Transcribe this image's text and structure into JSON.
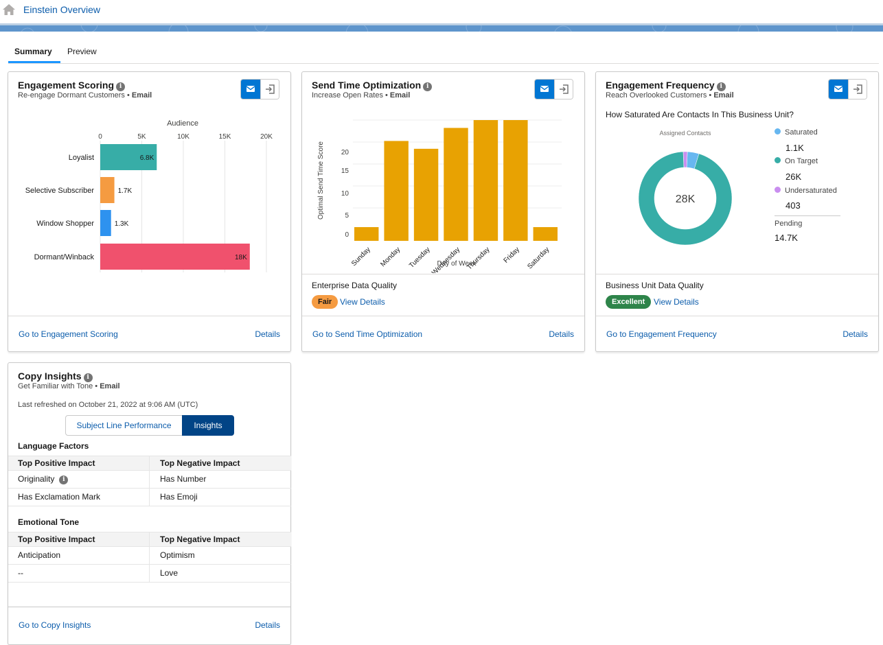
{
  "app": {
    "title": "Einstein Overview"
  },
  "tabs": [
    "Summary",
    "Preview"
  ],
  "colors": {
    "accent": "#0176d3",
    "link": "#0b5cab",
    "teal": "#37ada7",
    "orange": "#f59b41",
    "blue": "#2e92ef",
    "pink": "#f0516d",
    "gold": "#e8a202",
    "saturated": "#67b7f0",
    "under": "#c98eef",
    "excellent": "#2e844a"
  },
  "common": {
    "details": "Details",
    "view_details": "View Details"
  },
  "engagement_scoring": {
    "title": "Engagement Scoring",
    "sub_prefix": "Re-engage Dormant Customers •",
    "sub_channel": "Email",
    "footer_link": "Go to Engagement Scoring",
    "axis_title": "Audience",
    "ticks": [
      "0",
      "5K",
      "10K",
      "15K",
      "20K"
    ]
  },
  "send_time": {
    "title": "Send Time Optimization",
    "sub_prefix": "Increase Open Rates •",
    "sub_channel": "Email",
    "quality_label": "Enterprise Data Quality",
    "badge": "Fair",
    "footer_link": "Go to Send Time Optimization",
    "ylabel": "Optimal Send Time Score",
    "xlabel": "Day of Week",
    "yticks": [
      "0",
      "5",
      "10",
      "15",
      "20"
    ]
  },
  "engagement_frequency": {
    "title": "Engagement Frequency",
    "sub_prefix": "Reach Overlooked Customers •",
    "sub_channel": "Email",
    "question": "How Saturated Are Contacts In This Business Unit?",
    "donut_title": "Assigned Contacts",
    "donut_center": "28K",
    "legend": [
      {
        "label": "Saturated",
        "value": "1.1K",
        "color": "#67b7f0"
      },
      {
        "label": "On Target",
        "value": "26K",
        "color": "#37ada7"
      },
      {
        "label": "Undersaturated",
        "value": "403",
        "color": "#c98eef"
      }
    ],
    "pending_label": "Pending",
    "pending_value": "14.7K",
    "quality_label": "Business Unit Data Quality",
    "badge": "Excellent",
    "footer_link": "Go to Engagement Frequency"
  },
  "copy_insights": {
    "title": "Copy Insights",
    "sub_prefix": "Get Familiar with Tone •",
    "sub_channel": "Email",
    "refreshed": "Last refreshed on October 21, 2022 at 9:06 AM (UTC)",
    "seg_left": "Subject Line Performance",
    "seg_right": "Insights",
    "language_title": "Language Factors",
    "emotional_title": "Emotional Tone",
    "col_pos": "Top Positive Impact",
    "col_neg": "Top Negative Impact",
    "language_rows": [
      {
        "pos": "Originality",
        "neg": "Has Number"
      },
      {
        "pos": "Has Exclamation Mark",
        "neg": "Has Emoji"
      }
    ],
    "emotional_rows": [
      {
        "pos": "Anticipation",
        "neg": "Optimism"
      },
      {
        "pos": "--",
        "neg": "Love"
      }
    ],
    "footer_link": "Go to Copy Insights"
  },
  "chart_data": [
    {
      "type": "bar",
      "orientation": "horizontal",
      "title": "",
      "xlabel": "Audience",
      "categories": [
        "Loyalist",
        "Selective Subscriber",
        "Window Shopper",
        "Dormant/Winback"
      ],
      "values": [
        6800,
        1700,
        1300,
        18000
      ],
      "labels": [
        "6.8K",
        "1.7K",
        "1.3K",
        "18K"
      ],
      "colors": [
        "#37ada7",
        "#f59b41",
        "#2e92ef",
        "#f0516d"
      ],
      "xlim": [
        0,
        20000
      ],
      "grid": true
    },
    {
      "type": "bar",
      "title": "",
      "xlabel": "Day of Week",
      "ylabel": "Optimal Send Time Score",
      "categories": [
        "Sunday",
        "Monday",
        "Tuesday",
        "Wednesday",
        "Thursday",
        "Friday",
        "Saturday"
      ],
      "values": [
        2.5,
        19,
        17.5,
        21.5,
        23,
        23,
        2.5
      ],
      "color": "#e8a202",
      "ylim": [
        0,
        23
      ],
      "grid": true
    },
    {
      "type": "pie",
      "variant": "donut",
      "title": "Assigned Contacts",
      "categories": [
        "Saturated",
        "On Target",
        "Undersaturated"
      ],
      "values": [
        1100,
        26000,
        403
      ],
      "colors": [
        "#67b7f0",
        "#37ada7",
        "#c98eef"
      ],
      "center_label": "28K"
    }
  ]
}
